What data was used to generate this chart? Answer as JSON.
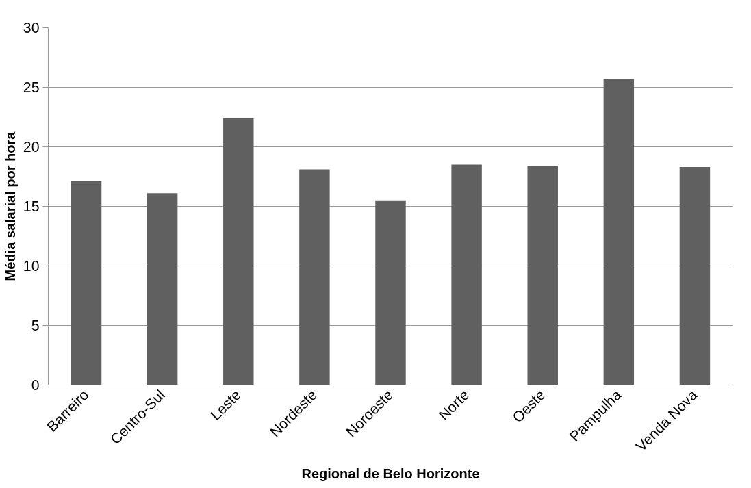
{
  "chart_data": {
    "type": "bar",
    "xlabel": "Regional de Belo Horizonte",
    "ylabel": "Média salarial por hora",
    "categories": [
      "Barreiro",
      "Centro-Sul",
      "Leste",
      "Nordeste",
      "Noroeste",
      "Norte",
      "Oeste",
      "Pampulha",
      "Venda Nova"
    ],
    "values": [
      17.1,
      16.1,
      22.4,
      18.1,
      15.5,
      18.5,
      18.4,
      25.7,
      18.3
    ],
    "color": "#606060",
    "ylim": [
      0,
      30
    ],
    "yticks": [
      0,
      5,
      10,
      15,
      20,
      25,
      30
    ],
    "grid": "y"
  }
}
